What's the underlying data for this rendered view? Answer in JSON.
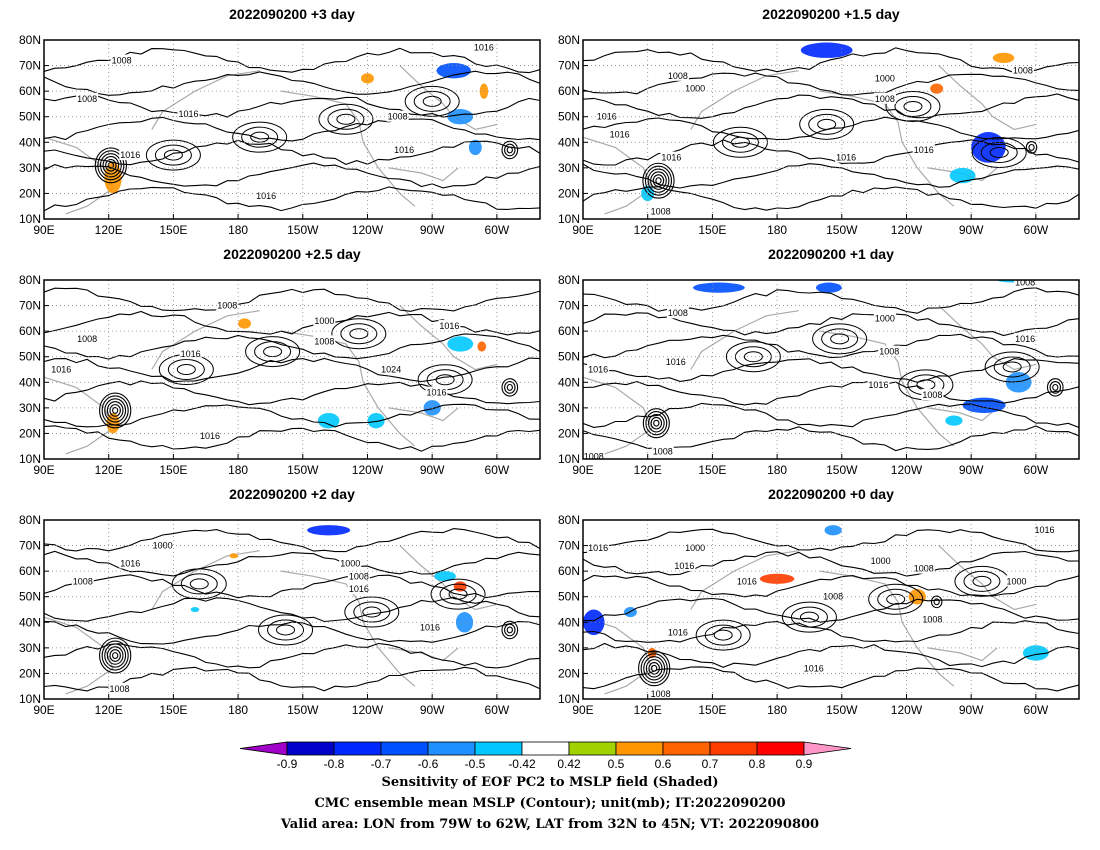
{
  "chart_data": [
    {
      "type": "heatmap",
      "title": "2022090200 +3 day",
      "clusters": [
        {
          "lon": 122,
          "lat": 26,
          "value": 0.5,
          "spread": [
            4,
            6
          ]
        },
        {
          "lon": 240,
          "lat": 65,
          "value": 0.5,
          "spread": [
            3,
            2
          ]
        },
        {
          "lon": 280,
          "lat": 68,
          "value": -0.7,
          "spread": [
            8,
            3
          ]
        },
        {
          "lon": 283,
          "lat": 50,
          "value": -0.6,
          "spread": [
            6,
            3
          ]
        },
        {
          "lon": 290,
          "lat": 38,
          "value": -0.6,
          "spread": [
            3,
            3
          ]
        },
        {
          "lon": 294,
          "lat": 60,
          "value": 0.5,
          "spread": [
            2,
            3
          ]
        }
      ],
      "isobars": [
        {
          "label": "1008",
          "lon": 126,
          "lat": 72
        },
        {
          "label": "1008",
          "lon": 110,
          "lat": 57
        },
        {
          "label": "1016",
          "lon": 157,
          "lat": 51
        },
        {
          "label": "1016",
          "lon": 130,
          "lat": 35
        },
        {
          "label": "1016",
          "lon": 294,
          "lat": 77
        },
        {
          "label": "1008",
          "lon": 254,
          "lat": 50
        },
        {
          "label": "1016",
          "lon": 257,
          "lat": 37
        },
        {
          "label": "1016",
          "lon": 193,
          "lat": 19
        }
      ],
      "lows": [
        {
          "lon": 121,
          "lat": 31,
          "rings": 6
        },
        {
          "lon": 306,
          "lat": 37,
          "rings": 3
        }
      ]
    },
    {
      "type": "heatmap",
      "title": "2022090200 +1.5 day",
      "clusters": [
        {
          "lon": 120,
          "lat": 20,
          "value": -0.5,
          "spread": [
            3,
            3
          ]
        },
        {
          "lon": 203,
          "lat": 76,
          "value": -0.8,
          "spread": [
            12,
            3
          ]
        },
        {
          "lon": 254,
          "lat": 61,
          "value": 0.6,
          "spread": [
            3,
            2
          ]
        },
        {
          "lon": 278,
          "lat": 38,
          "value": -0.8,
          "spread": [
            8,
            6
          ]
        },
        {
          "lon": 266,
          "lat": 27,
          "value": -0.5,
          "spread": [
            6,
            3
          ]
        },
        {
          "lon": 285,
          "lat": 73,
          "value": 0.5,
          "spread": [
            5,
            2
          ]
        }
      ],
      "isobars": [
        {
          "label": "1008",
          "lon": 134,
          "lat": 66
        },
        {
          "label": "1000",
          "lon": 142,
          "lat": 61
        },
        {
          "label": "1016",
          "lon": 101,
          "lat": 50
        },
        {
          "label": "1016",
          "lon": 107,
          "lat": 43
        },
        {
          "label": "1016",
          "lon": 131,
          "lat": 34
        },
        {
          "label": "1016",
          "lon": 212,
          "lat": 34
        },
        {
          "label": "1000",
          "lon": 230,
          "lat": 65
        },
        {
          "label": "1008",
          "lon": 230,
          "lat": 57
        },
        {
          "label": "1016",
          "lon": 248,
          "lat": 37
        },
        {
          "label": "1008",
          "lon": 294,
          "lat": 68
        },
        {
          "label": "1008",
          "lon": 126,
          "lat": 13
        }
      ],
      "lows": [
        {
          "lon": 125,
          "lat": 25,
          "rings": 6
        },
        {
          "lon": 298,
          "lat": 38,
          "rings": 2
        }
      ]
    },
    {
      "type": "heatmap",
      "title": "2022090200 +2.5 day",
      "clusters": [
        {
          "lon": 122,
          "lat": 24,
          "value": 0.5,
          "spread": [
            3,
            4
          ]
        },
        {
          "lon": 183,
          "lat": 63,
          "value": 0.5,
          "spread": [
            3,
            2
          ]
        },
        {
          "lon": 222,
          "lat": 25,
          "value": -0.5,
          "spread": [
            5,
            3
          ]
        },
        {
          "lon": 244,
          "lat": 25,
          "value": -0.5,
          "spread": [
            4,
            3
          ]
        },
        {
          "lon": 270,
          "lat": 30,
          "value": -0.6,
          "spread": [
            4,
            3
          ]
        },
        {
          "lon": 283,
          "lat": 55,
          "value": -0.5,
          "spread": [
            6,
            3
          ]
        },
        {
          "lon": 293,
          "lat": 54,
          "value": 0.6,
          "spread": [
            2,
            2
          ]
        }
      ],
      "isobars": [
        {
          "label": "1008",
          "lon": 175,
          "lat": 70
        },
        {
          "label": "1008",
          "lon": 110,
          "lat": 57
        },
        {
          "label": "1016",
          "lon": 98,
          "lat": 45
        },
        {
          "label": "1016",
          "lon": 158,
          "lat": 51
        },
        {
          "label": "1000",
          "lon": 220,
          "lat": 64
        },
        {
          "label": "1008",
          "lon": 220,
          "lat": 56
        },
        {
          "label": "1016",
          "lon": 278,
          "lat": 62
        },
        {
          "label": "1024",
          "lon": 251,
          "lat": 45
        },
        {
          "label": "1016",
          "lon": 272,
          "lat": 36
        },
        {
          "label": "1016",
          "lon": 167,
          "lat": 19
        }
      ],
      "lows": [
        {
          "lon": 123,
          "lat": 29,
          "rings": 6
        },
        {
          "lon": 306,
          "lat": 38,
          "rings": 3
        }
      ]
    },
    {
      "type": "heatmap",
      "title": "2022090200 +1 day",
      "clusters": [
        {
          "lon": 153,
          "lat": 77,
          "value": -0.7,
          "spread": [
            12,
            2
          ]
        },
        {
          "lon": 204,
          "lat": 77,
          "value": -0.7,
          "spread": [
            6,
            2
          ]
        },
        {
          "lon": 276,
          "lat": 31,
          "value": -0.7,
          "spread": [
            10,
            3
          ]
        },
        {
          "lon": 292,
          "lat": 40,
          "value": -0.6,
          "spread": [
            6,
            4
          ]
        },
        {
          "lon": 262,
          "lat": 25,
          "value": -0.5,
          "spread": [
            4,
            2
          ]
        },
        {
          "lon": 290,
          "lat": 80,
          "value": -0.5,
          "spread": [
            8,
            1
          ]
        }
      ],
      "isobars": [
        {
          "label": "1008",
          "lon": 134,
          "lat": 67
        },
        {
          "label": "1016",
          "lon": 97,
          "lat": 45
        },
        {
          "label": "1016",
          "lon": 133,
          "lat": 48
        },
        {
          "label": "1000",
          "lon": 230,
          "lat": 65
        },
        {
          "label": "1008",
          "lon": 232,
          "lat": 52
        },
        {
          "label": "1016",
          "lon": 227,
          "lat": 39
        },
        {
          "label": "1008",
          "lon": 252,
          "lat": 35
        },
        {
          "label": "1008",
          "lon": 295,
          "lat": 79
        },
        {
          "label": "1016",
          "lon": 295,
          "lat": 57
        },
        {
          "label": "1008",
          "lon": 95,
          "lat": 11
        },
        {
          "label": "1008",
          "lon": 127,
          "lat": 13
        }
      ],
      "lows": [
        {
          "lon": 124,
          "lat": 24,
          "rings": 5
        },
        {
          "lon": 309,
          "lat": 38,
          "rings": 3
        }
      ]
    },
    {
      "type": "heatmap",
      "title": "2022090200 +2 day",
      "clusters": [
        {
          "lon": 222,
          "lat": 76,
          "value": -0.8,
          "spread": [
            10,
            2
          ]
        },
        {
          "lon": 178,
          "lat": 66,
          "value": 0.5,
          "spread": [
            2,
            1
          ]
        },
        {
          "lon": 283,
          "lat": 54,
          "value": 0.7,
          "spread": [
            3,
            2
          ]
        },
        {
          "lon": 276,
          "lat": 58,
          "value": -0.5,
          "spread": [
            5,
            2
          ]
        },
        {
          "lon": 285,
          "lat": 40,
          "value": -0.6,
          "spread": [
            4,
            4
          ]
        },
        {
          "lon": 160,
          "lat": 45,
          "value": -0.5,
          "spread": [
            2,
            1
          ]
        }
      ],
      "isobars": [
        {
          "label": "1000",
          "lon": 145,
          "lat": 70
        },
        {
          "label": "1016",
          "lon": 130,
          "lat": 63
        },
        {
          "label": "1008",
          "lon": 108,
          "lat": 56
        },
        {
          "label": "1000",
          "lon": 232,
          "lat": 63
        },
        {
          "label": "1008",
          "lon": 236,
          "lat": 58
        },
        {
          "label": "1016",
          "lon": 236,
          "lat": 53
        },
        {
          "label": "1016",
          "lon": 269,
          "lat": 38
        },
        {
          "label": "1008",
          "lon": 125,
          "lat": 14
        }
      ],
      "lows": [
        {
          "lon": 123,
          "lat": 27,
          "rings": 6
        },
        {
          "lon": 306,
          "lat": 37,
          "rings": 3
        }
      ]
    },
    {
      "type": "heatmap",
      "title": "2022090200 +0 day",
      "clusters": [
        {
          "lon": 95,
          "lat": 40,
          "value": -0.8,
          "spread": [
            5,
            5
          ]
        },
        {
          "lon": 112,
          "lat": 44,
          "value": -0.6,
          "spread": [
            3,
            2
          ]
        },
        {
          "lon": 180,
          "lat": 57,
          "value": 0.7,
          "spread": [
            8,
            2
          ]
        },
        {
          "lon": 206,
          "lat": 76,
          "value": -0.6,
          "spread": [
            4,
            2
          ]
        },
        {
          "lon": 245,
          "lat": 50,
          "value": 0.5,
          "spread": [
            4,
            3
          ]
        },
        {
          "lon": 122,
          "lat": 28,
          "value": 0.6,
          "spread": [
            2,
            2
          ]
        },
        {
          "lon": 300,
          "lat": 28,
          "value": -0.5,
          "spread": [
            6,
            3
          ]
        }
      ],
      "isobars": [
        {
          "label": "1016",
          "lon": 97,
          "lat": 69
        },
        {
          "label": "1000",
          "lon": 142,
          "lat": 69
        },
        {
          "label": "1016",
          "lon": 137,
          "lat": 62
        },
        {
          "label": "1016",
          "lon": 166,
          "lat": 56
        },
        {
          "label": "1000",
          "lon": 228,
          "lat": 64
        },
        {
          "label": "1008",
          "lon": 206,
          "lat": 50
        },
        {
          "label": "1016",
          "lon": 134,
          "lat": 36
        },
        {
          "label": "1008",
          "lon": 248,
          "lat": 61
        },
        {
          "label": "1008",
          "lon": 252,
          "lat": 41
        },
        {
          "label": "1000",
          "lon": 291,
          "lat": 56
        },
        {
          "label": "1016",
          "lon": 304,
          "lat": 76
        },
        {
          "label": "1016",
          "lon": 197,
          "lat": 22
        },
        {
          "label": "1008",
          "lon": 126,
          "lat": 12
        }
      ],
      "lows": [
        {
          "lon": 123,
          "lat": 22,
          "rings": 6
        },
        {
          "lon": 254,
          "lat": 48,
          "rings": 2
        }
      ]
    }
  ],
  "map_axes": {
    "lon_range": [
      90,
      320
    ],
    "lat_range": [
      10,
      80
    ],
    "lon_ticks": [
      90,
      120,
      150,
      180,
      210,
      240,
      270,
      300
    ],
    "lon_tick_labels": [
      "90E",
      "120E",
      "150E",
      "180",
      "150W",
      "120W",
      "90W",
      "60W"
    ],
    "lat_ticks": [
      10,
      20,
      30,
      40,
      50,
      60,
      70,
      80
    ],
    "lat_tick_labels": [
      "10N",
      "20N",
      "30N",
      "40N",
      "50N",
      "60N",
      "70N",
      "80N"
    ],
    "grid": true
  },
  "colorbar": {
    "levels": [
      "-0.9",
      "-0.8",
      "-0.7",
      "-0.6",
      "-0.5",
      "-0.42",
      "0.42",
      "0.5",
      "0.6",
      "0.7",
      "0.8",
      "0.9"
    ],
    "colors": [
      "#a000c8",
      "#0000c8",
      "#0028ff",
      "#0050ff",
      "#1e90ff",
      "#00c8ff",
      "#ffffff",
      "#a0d200",
      "#ff9600",
      "#ff6400",
      "#ff3c00",
      "#ff0000",
      "#ff96c8"
    ]
  },
  "captions": {
    "line1": "Sensitivity of EOF PC2 to MSLP field (Shaded)",
    "line2": "CMC ensemble mean MSLP (Contour); unit(mb); IT:2022090200",
    "line3": "Valid area: LON from 79W to 62W, LAT from 32N to 45N; VT: 2022090800"
  }
}
